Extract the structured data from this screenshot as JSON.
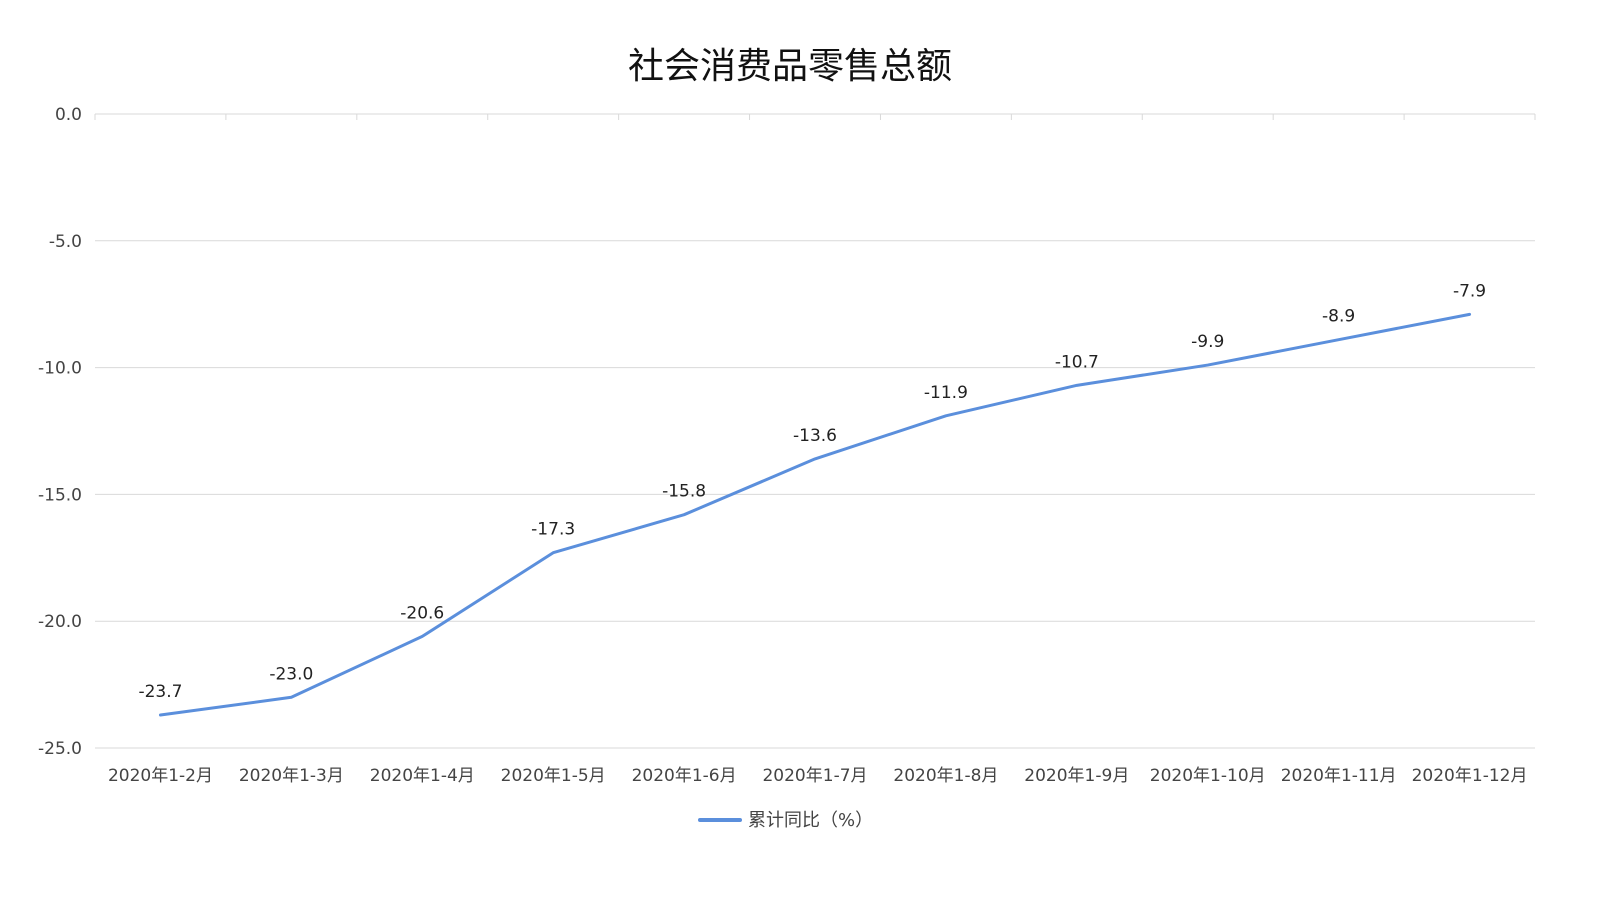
{
  "chart_data": {
    "type": "line",
    "title": "社会消费品零售总额",
    "categories": [
      "2020年1-2月",
      "2020年1-3月",
      "2020年1-4月",
      "2020年1-5月",
      "2020年1-6月",
      "2020年1-7月",
      "2020年1-8月",
      "2020年1-9月",
      "2020年1-10月",
      "2020年1-11月",
      "2020年1-12月"
    ],
    "series": [
      {
        "name": "累计同比（%）",
        "values": [
          -23.7,
          -23.0,
          -20.6,
          -17.3,
          -15.8,
          -13.6,
          -11.9,
          -10.7,
          -9.9,
          -8.9,
          -7.9
        ],
        "color": "#5b8fdc"
      }
    ],
    "xlabel": "",
    "ylabel": "",
    "ylim": [
      -25.0,
      0.0
    ],
    "yticks": [
      "0.0",
      "-5.0",
      "-10.0",
      "-15.0",
      "-20.0",
      "-25.0"
    ],
    "grid": true,
    "legend_position": "bottom",
    "data_labels": true
  }
}
